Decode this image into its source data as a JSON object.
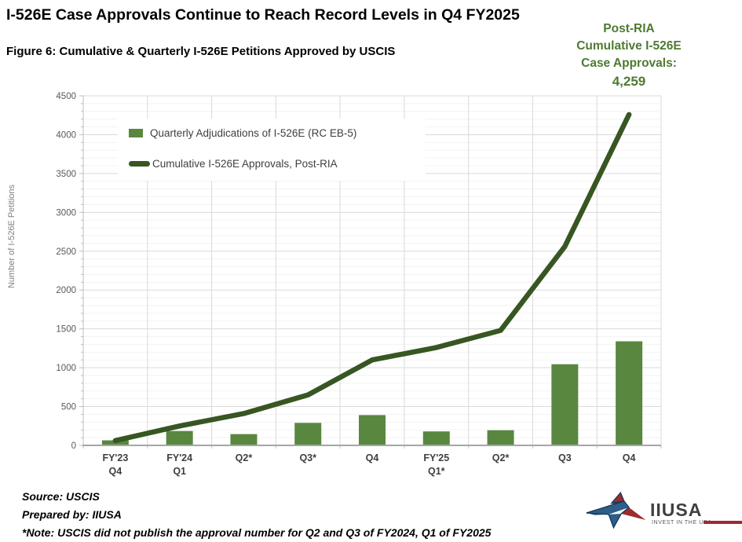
{
  "page": {
    "title": "I-526E Case Approvals Continue to Reach Record Levels in Q4 FY2025",
    "subtitle": "Figure 6: Cumulative & Quarterly I-526E Petitions Approved by USCIS"
  },
  "annotation": {
    "line1": "Post-RIA",
    "line2": "Cumulative I-526E",
    "line3": "Case Approvals:",
    "value": "4,259"
  },
  "chart_data": {
    "type": "combo",
    "categories": [
      "FY'23\nQ4",
      "FY'24\nQ1",
      "Q2*",
      "Q3*",
      "Q4",
      "FY'25\nQ1*",
      "Q2*",
      "Q3",
      "Q4"
    ],
    "series": [
      {
        "name": "Quarterly Adjudications of I-526E (RC EB-5)",
        "type": "bar",
        "values": [
          65,
          185,
          145,
          290,
          390,
          180,
          195,
          1045,
          1340
        ]
      },
      {
        "name": "Cumulative I-526E Approvals, Post-RIA",
        "type": "line",
        "values": [
          62,
          250,
          410,
          650,
          1100,
          1260,
          1480,
          2560,
          4259
        ]
      }
    ],
    "title": "",
    "xlabel": "",
    "ylabel": "Number of I-526E Petitions",
    "ylim": [
      0,
      4500
    ],
    "ytick_step": 500,
    "ytick_minor_step": 100,
    "grid": true,
    "legend_position": "top-left-inside",
    "end_point_label": "4,259"
  },
  "footer": {
    "source": "Source: USCIS",
    "prepared": "Prepared by: IIUSA",
    "note": "*Note: USCIS did not publish the approval number for Q2 and Q3 of FY2024, Q1 of FY2025"
  },
  "logo": {
    "name": "IIUSA",
    "tagline": "INVEST IN THE USA"
  },
  "colors": {
    "bar": "#598740",
    "line": "#375623",
    "annotation_text": "#4e7a31",
    "grid_major": "#d9d9d9",
    "grid_minor": "#f3f3f3",
    "axis_line": "#a6a6a6",
    "tick_line": "#bfbfbf",
    "tick_text": "#595959",
    "xlabel_text": "#3f3f3f",
    "logo_red": "#9e2b2e",
    "logo_blue": "#2e5f8a",
    "logo_navy": "#17375e"
  }
}
